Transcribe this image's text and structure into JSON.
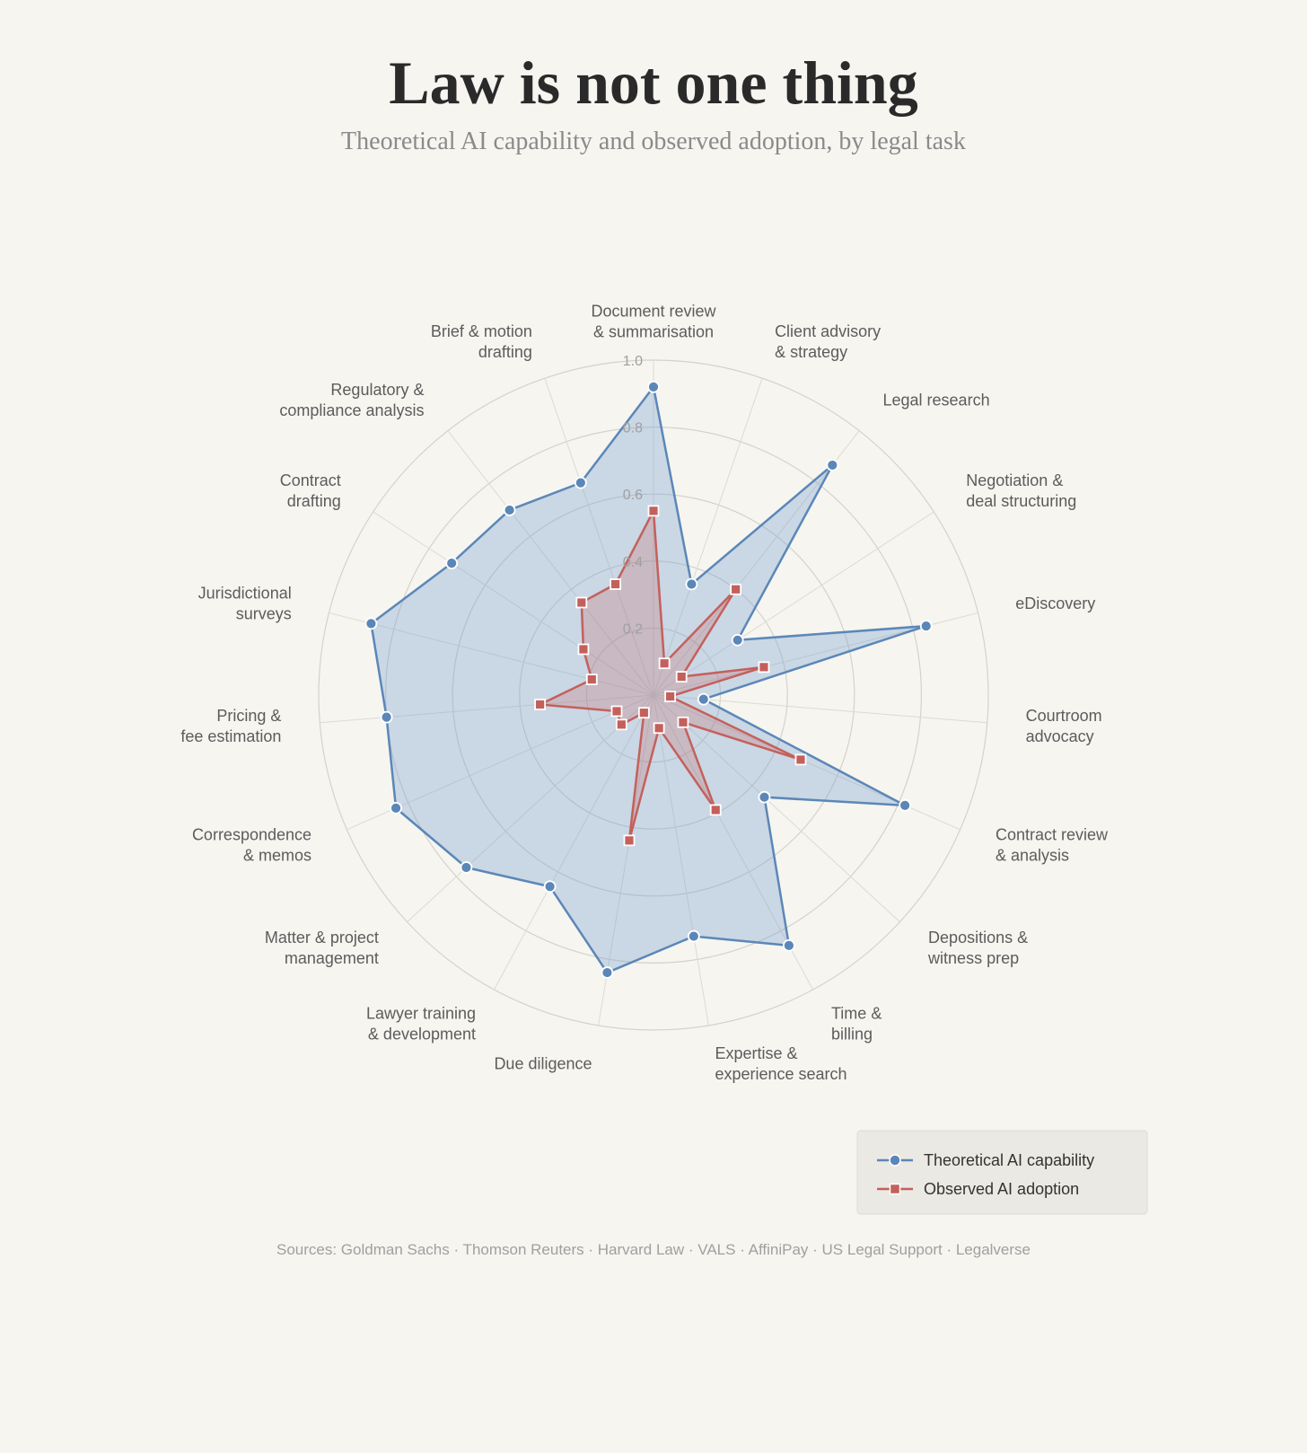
{
  "chart_data": {
    "type": "radar",
    "title": "Law is not one thing",
    "subtitle": "Theoretical AI capability and observed adoption, by legal task",
    "rlim": [
      0,
      1.0
    ],
    "r_ticks": [
      "0.2",
      "0.4",
      "0.6",
      "0.8",
      "1.0"
    ],
    "categories": [
      "Document review\n& summarisation",
      "Client advisory\n& strategy",
      "Legal research",
      "Negotiation &\ndeal structuring",
      "eDiscovery",
      "Courtroom\nadvocacy",
      "Contract review\n& analysis",
      "Depositions &\nwitness prep",
      "Time &\nbilling",
      "Expertise &\nexperience search",
      "Due diligence",
      "Lawyer training\n& development",
      "Matter & project\nmanagement",
      "Correspondence\n& memos",
      "Pricing &\nfee estimation",
      "Jurisdictional\nsurveys",
      "Contract\ndrafting",
      "Regulatory &\ncompliance analysis",
      "Brief & motion\ndrafting"
    ],
    "series": [
      {
        "name": "Theoretical AI capability",
        "color": "#5b87b8",
        "marker": "circle",
        "values": [
          0.92,
          0.35,
          0.87,
          0.3,
          0.84,
          0.15,
          0.82,
          0.45,
          0.85,
          0.73,
          0.84,
          0.65,
          0.76,
          0.84,
          0.8,
          0.87,
          0.72,
          0.7,
          0.67
        ]
      },
      {
        "name": "Observed AI adoption",
        "color": "#c4605c",
        "marker": "square",
        "values": [
          0.55,
          0.1,
          0.4,
          0.1,
          0.34,
          0.05,
          0.48,
          0.12,
          0.39,
          0.1,
          0.44,
          0.06,
          0.13,
          0.12,
          0.34,
          0.19,
          0.25,
          0.35,
          0.35
        ]
      }
    ],
    "grid": true,
    "legend_position": "bottom-right"
  },
  "sources": "Sources: Goldman Sachs · Thomson Reuters · Harvard Law · VALS · AffiniPay · US Legal Support · Legalverse"
}
